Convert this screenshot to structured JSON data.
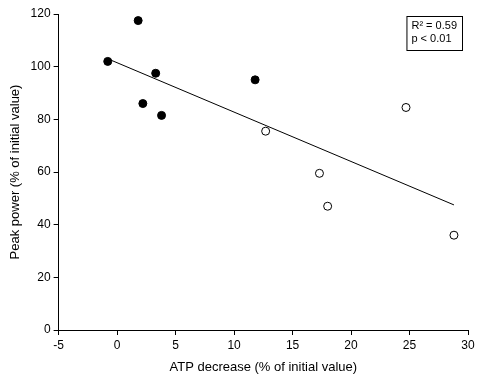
{
  "chart_data": {
    "type": "scatter",
    "x_label": "ATP decrease (% of initial value)",
    "y_label": "Peak power (% of initial value)",
    "annotations": [
      "R² = 0.59",
      "p < 0.01"
    ],
    "xlim": [
      -5,
      30
    ],
    "xticks": [
      -5,
      0,
      5,
      10,
      15,
      20,
      25,
      30
    ],
    "ylim": [
      0,
      120
    ],
    "yticks": [
      0,
      20,
      40,
      60,
      80,
      100,
      120
    ],
    "grid": false,
    "series": [
      {
        "type": "scatter",
        "marker": "circle",
        "color": "#000000",
        "x": [
          -0.8,
          1.8,
          2.2,
          3.3,
          3.8,
          11.8
        ],
        "values": [
          102,
          117.5,
          86,
          97.5,
          81.5,
          95
        ]
      },
      {
        "type": "scatter",
        "marker": "open_circle",
        "color": "#000000",
        "x": [
          12.7,
          17.3,
          18,
          24.7,
          28.8
        ],
        "values": [
          75.5,
          59.5,
          47,
          84.5,
          36
        ]
      },
      {
        "type": "line",
        "line_style": "solid",
        "color": "#000000",
        "x": [
          -0.8,
          28.8
        ],
        "values": [
          103,
          47.5
        ]
      }
    ]
  }
}
